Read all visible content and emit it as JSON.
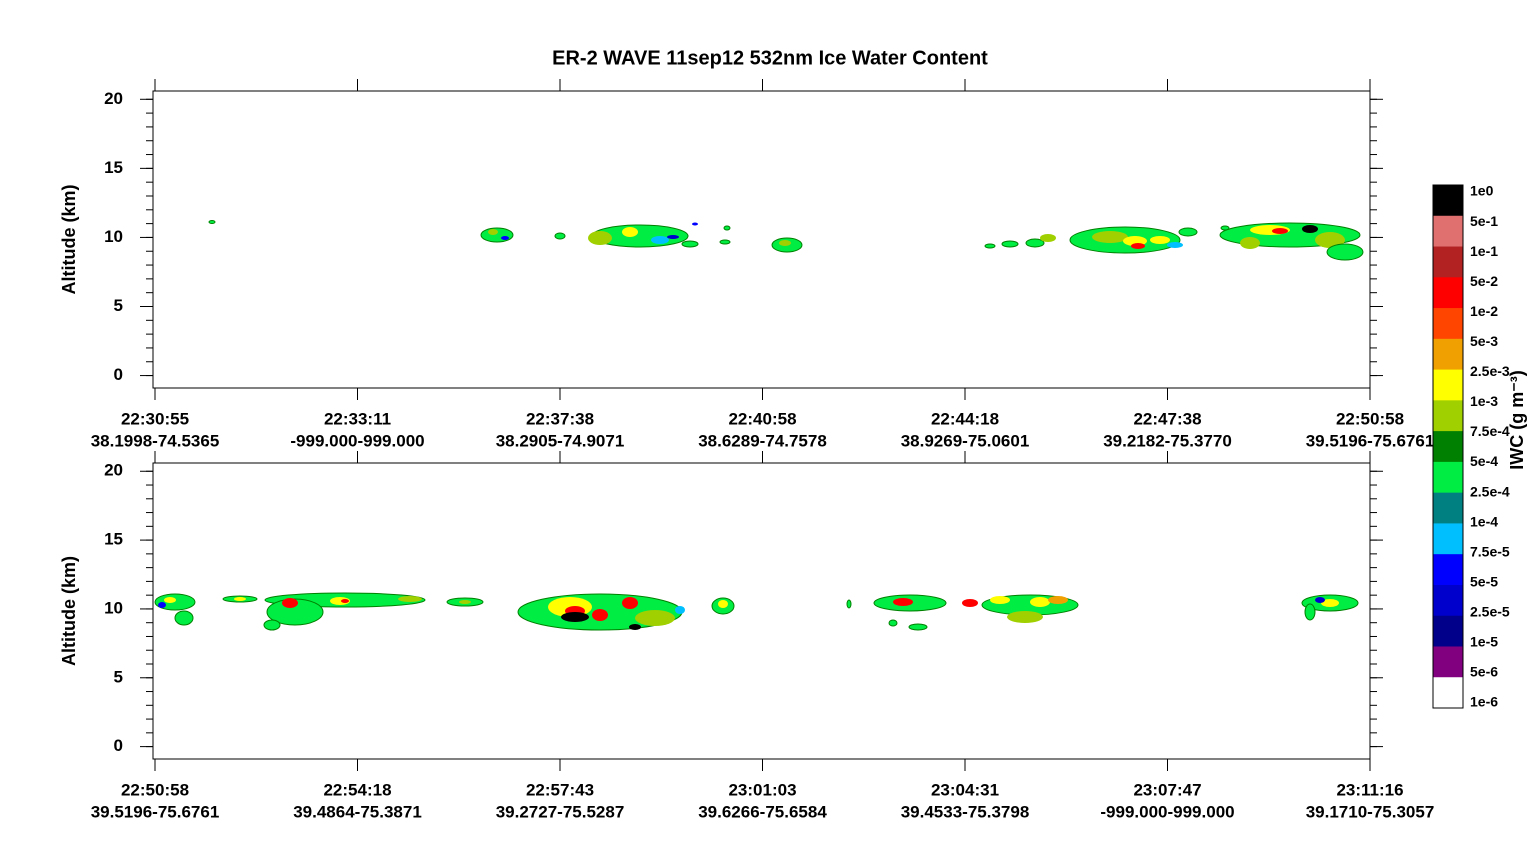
{
  "title": "ER-2  WAVE  11sep12  532nm Ice Water Content",
  "panels": [
    {
      "y_label": "Altitude (km)",
      "ylim": [
        -0.9,
        20.6
      ],
      "yticks": [
        0,
        5,
        10,
        15,
        20
      ],
      "x_tick_labels": [
        {
          "time": "22:30:55",
          "position": "38.1998-74.5365"
        },
        {
          "time": "22:33:11",
          "position": "-999.000-999.000"
        },
        {
          "time": "22:37:38",
          "position": "38.2905-74.9071"
        },
        {
          "time": "22:40:58",
          "position": "38.6289-74.7578"
        },
        {
          "time": "22:44:18",
          "position": "38.9269-75.0601"
        },
        {
          "time": "22:47:38",
          "position": "39.2182-75.3770"
        },
        {
          "time": "22:50:58",
          "position": "39.5196-75.6761"
        }
      ]
    },
    {
      "y_label": "Altitude (km)",
      "ylim": [
        -0.9,
        20.6
      ],
      "yticks": [
        0,
        5,
        10,
        15,
        20
      ],
      "x_tick_labels": [
        {
          "time": "22:50:58",
          "position": "39.5196-75.6761"
        },
        {
          "time": "22:54:18",
          "position": "39.4864-75.3871"
        },
        {
          "time": "22:57:43",
          "position": "39.2727-75.5287"
        },
        {
          "time": "23:01:03",
          "position": "39.6266-75.6584"
        },
        {
          "time": "23:04:31",
          "position": "39.4533-75.3798"
        },
        {
          "time": "23:07:47",
          "position": "-999.000-999.000"
        },
        {
          "time": "23:11:16",
          "position": "39.1710-75.3057"
        }
      ]
    }
  ],
  "colorbar": {
    "label": "IWC (g m⁻³)",
    "levels": [
      "1e0",
      "5e-1",
      "1e-1",
      "5e-2",
      "1e-2",
      "5e-3",
      "2.5e-3",
      "1e-3",
      "7.5e-4",
      "5e-4",
      "2.5e-4",
      "1e-4",
      "7.5e-5",
      "5e-5",
      "2.5e-5",
      "1e-5",
      "5e-6",
      "1e-6"
    ],
    "colors": [
      "#000000",
      "#e07070",
      "#b22222",
      "#ff0000",
      "#ff4500",
      "#f0a000",
      "#ffff00",
      "#a0d000",
      "#008000",
      "#00ee44",
      "#008080",
      "#00bfff",
      "#0000ff",
      "#0000cd",
      "#00008b",
      "#800080",
      "#ffffff"
    ]
  }
}
